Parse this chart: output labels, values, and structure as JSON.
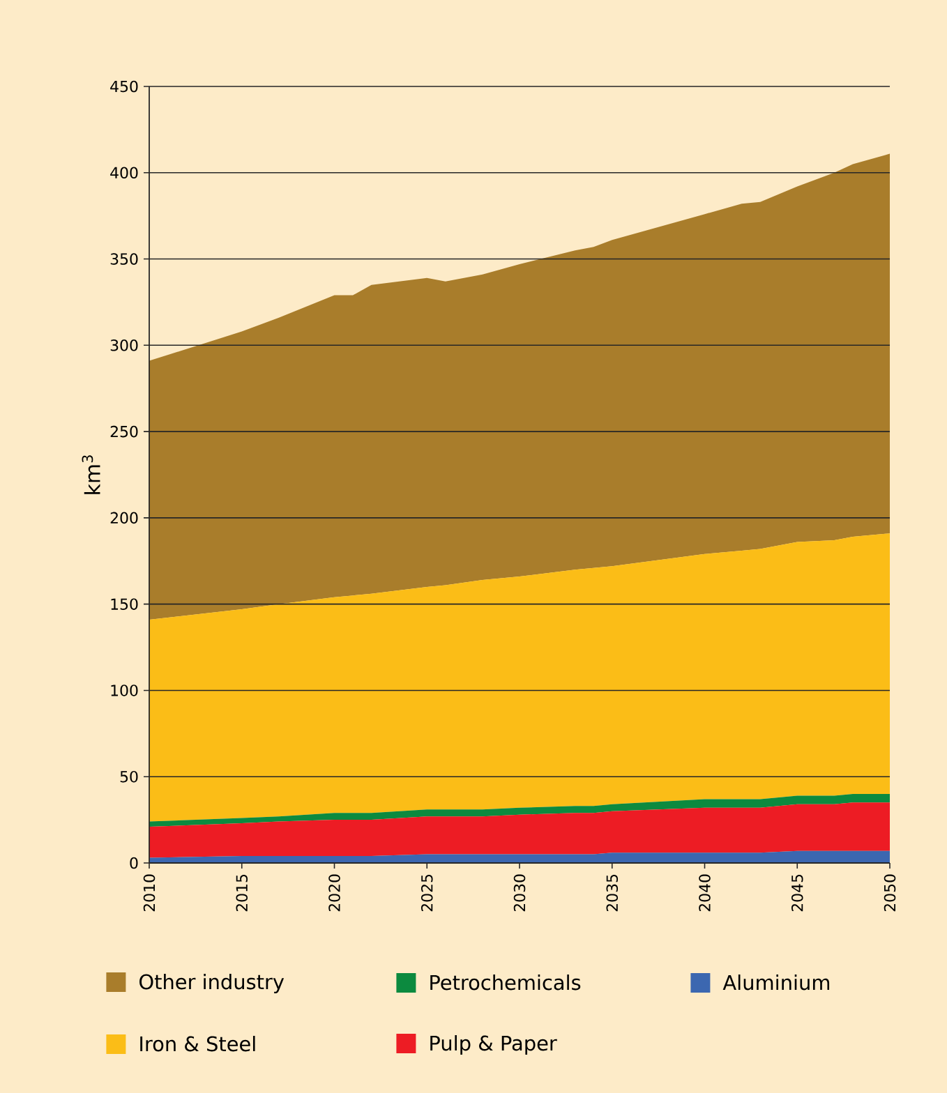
{
  "chart_data": {
    "type": "area",
    "stacked": true,
    "ylabel": "km$^{3}$",
    "x": [
      2010,
      2015,
      2017,
      2020,
      2021,
      2022,
      2025,
      2026,
      2028,
      2030,
      2033,
      2034,
      2035,
      2040,
      2042,
      2043,
      2045,
      2047,
      2048,
      2050
    ],
    "series": [
      {
        "name": "Aluminium",
        "color": "#3c67b0",
        "values": [
          3,
          4,
          4,
          4,
          4,
          4,
          5,
          5,
          5,
          5,
          5,
          5,
          6,
          6,
          6,
          6,
          7,
          7,
          7,
          7
        ]
      },
      {
        "name": "Pulp & Paper",
        "color": "#ed1c24",
        "values": [
          18,
          19,
          20,
          21,
          21,
          21,
          22,
          22,
          22,
          23,
          24,
          24,
          24,
          26,
          26,
          26,
          27,
          27,
          28,
          28
        ]
      },
      {
        "name": "Petrochemicals",
        "color": "#0c8a3f",
        "values": [
          3,
          3,
          3,
          4,
          4,
          4,
          4,
          4,
          4,
          4,
          4,
          4,
          4,
          5,
          5,
          5,
          5,
          5,
          5,
          5
        ]
      },
      {
        "name": "Iron & Steel",
        "color": "#fbbd17",
        "values": [
          117,
          121,
          123,
          125,
          126,
          127,
          129,
          130,
          133,
          134,
          137,
          138,
          138,
          142,
          144,
          145,
          147,
          148,
          149,
          151
        ]
      },
      {
        "name": "Other industry",
        "color": "#a97d2b",
        "values": [
          150,
          161,
          166,
          175,
          174,
          179,
          179,
          176,
          177,
          181,
          185,
          186,
          189,
          197,
          201,
          201,
          206,
          213,
          216,
          220
        ]
      }
    ],
    "xlim": [
      2010,
      2050
    ],
    "xticks": [
      2010,
      2015,
      2020,
      2025,
      2030,
      2035,
      2040,
      2045,
      2050
    ],
    "ylim": [
      0,
      450
    ],
    "yticks": [
      0,
      50,
      100,
      150,
      200,
      250,
      300,
      350,
      400,
      450
    ],
    "grid": "y",
    "legend": "bottom"
  }
}
